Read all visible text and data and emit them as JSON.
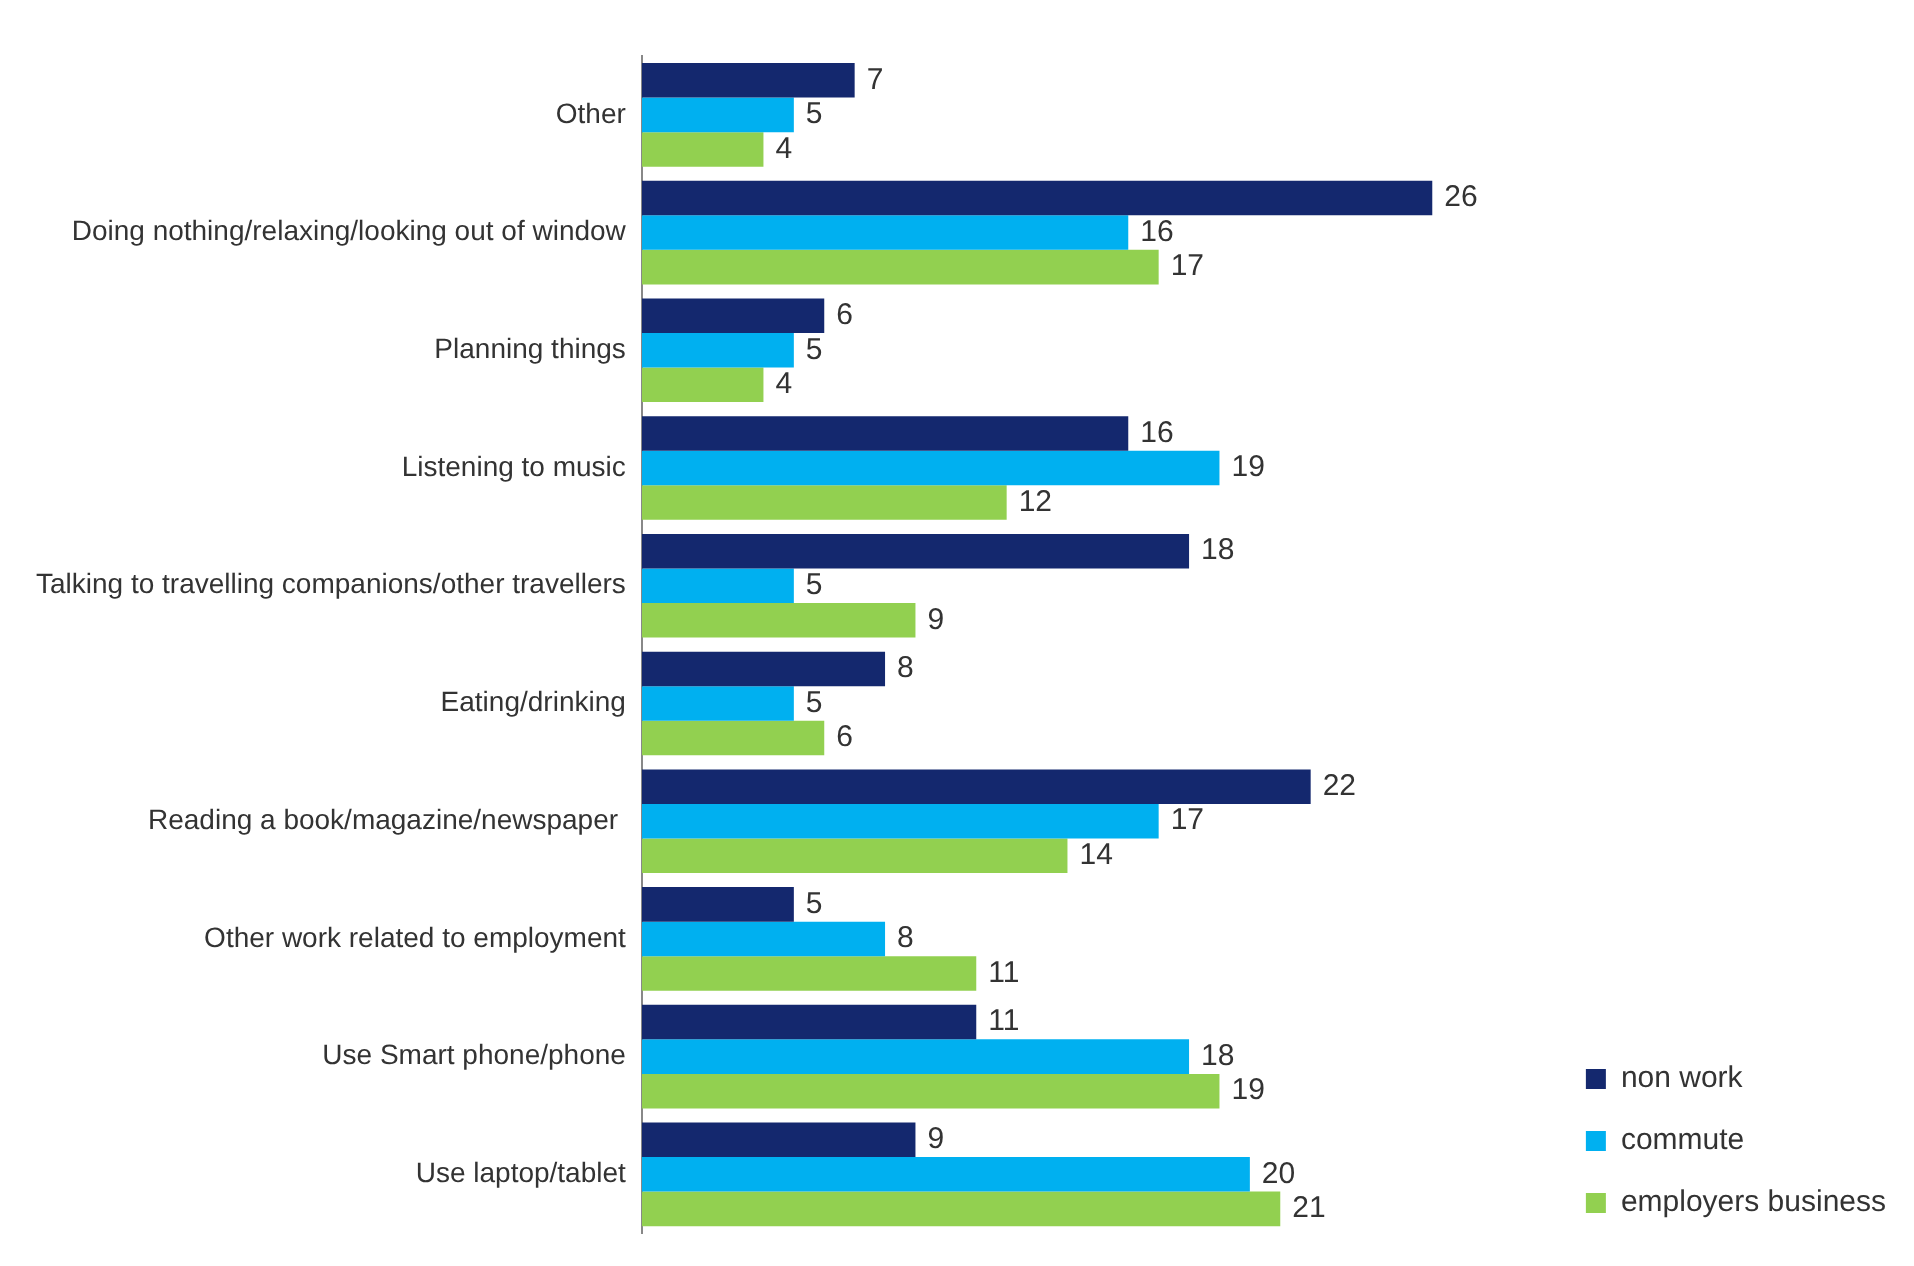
{
  "chart_data": {
    "type": "bar",
    "orientation": "horizontal",
    "categories": [
      "Other",
      "Doing nothing/relaxing/looking out of window",
      "Planning things",
      "Listening to music",
      "Talking to travelling companions/other travellers",
      "Eating/drinking",
      "Reading a book/magazine/newspaper ",
      "Other work related to employment",
      "Use Smart phone/phone",
      "Use laptop/tablet"
    ],
    "series": [
      {
        "name": "non work",
        "color": "#14286e",
        "values": [
          7,
          26,
          6,
          16,
          18,
          8,
          22,
          5,
          11,
          9
        ]
      },
      {
        "name": "commute",
        "color": "#00b0f0",
        "values": [
          5,
          16,
          5,
          19,
          5,
          5,
          17,
          8,
          18,
          20
        ]
      },
      {
        "name": "employers business",
        "color": "#92d050",
        "values": [
          4,
          17,
          4,
          12,
          9,
          6,
          14,
          11,
          19,
          21
        ]
      }
    ],
    "data_labels": true,
    "legend": "bottom right",
    "grid": false,
    "tick_labels": "y"
  }
}
